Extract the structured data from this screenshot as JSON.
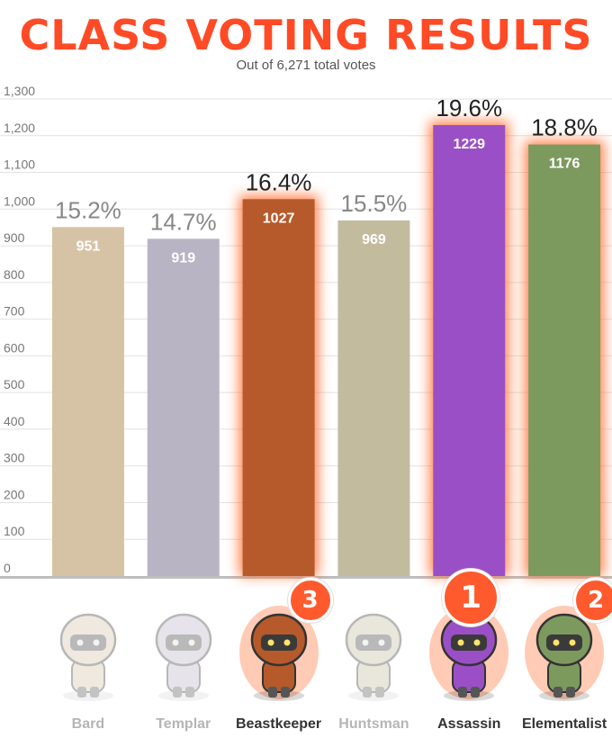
{
  "header": {
    "title": "CLASS VOTING RESULTS",
    "subtitle": "Out of 6,271 total votes"
  },
  "chart_data": {
    "type": "bar",
    "categories": [
      "Bard",
      "Templar",
      "Beastkeeper",
      "Huntsman",
      "Assassin",
      "Elementalist"
    ],
    "values": [
      951,
      919,
      1027,
      969,
      1229,
      1176
    ],
    "percent_labels": [
      "15.2%",
      "14.7%",
      "16.4%",
      "15.5%",
      "19.6%",
      "18.8%"
    ],
    "ranks": [
      "",
      "",
      "3",
      "",
      "1",
      "2"
    ],
    "highlighted": [
      false,
      false,
      true,
      false,
      true,
      true
    ],
    "bar_colors": [
      "#d6c3a6",
      "#b8b4c4",
      "#b65a2b",
      "#c3bb9e",
      "#9b4fc6",
      "#7d9a5e"
    ],
    "yticks": [
      "0",
      "100",
      "200",
      "300",
      "400",
      "500",
      "600",
      "700",
      "800",
      "900",
      "1,000",
      "1,100",
      "1,200",
      "1,300"
    ],
    "ylim": [
      0,
      1300
    ],
    "grid": true,
    "title": "CLASS VOTING RESULTS",
    "subtitle": "Out of 6,271 total votes"
  },
  "colors": {
    "title": "#ff4a26",
    "glow": "#ff6a2a",
    "rank_badge": "#ff5a2e",
    "grid": "#e2e2e2",
    "baseline": "#bdbdbd",
    "label_dim": "#b5b5b5",
    "label_strong": "#333333"
  }
}
